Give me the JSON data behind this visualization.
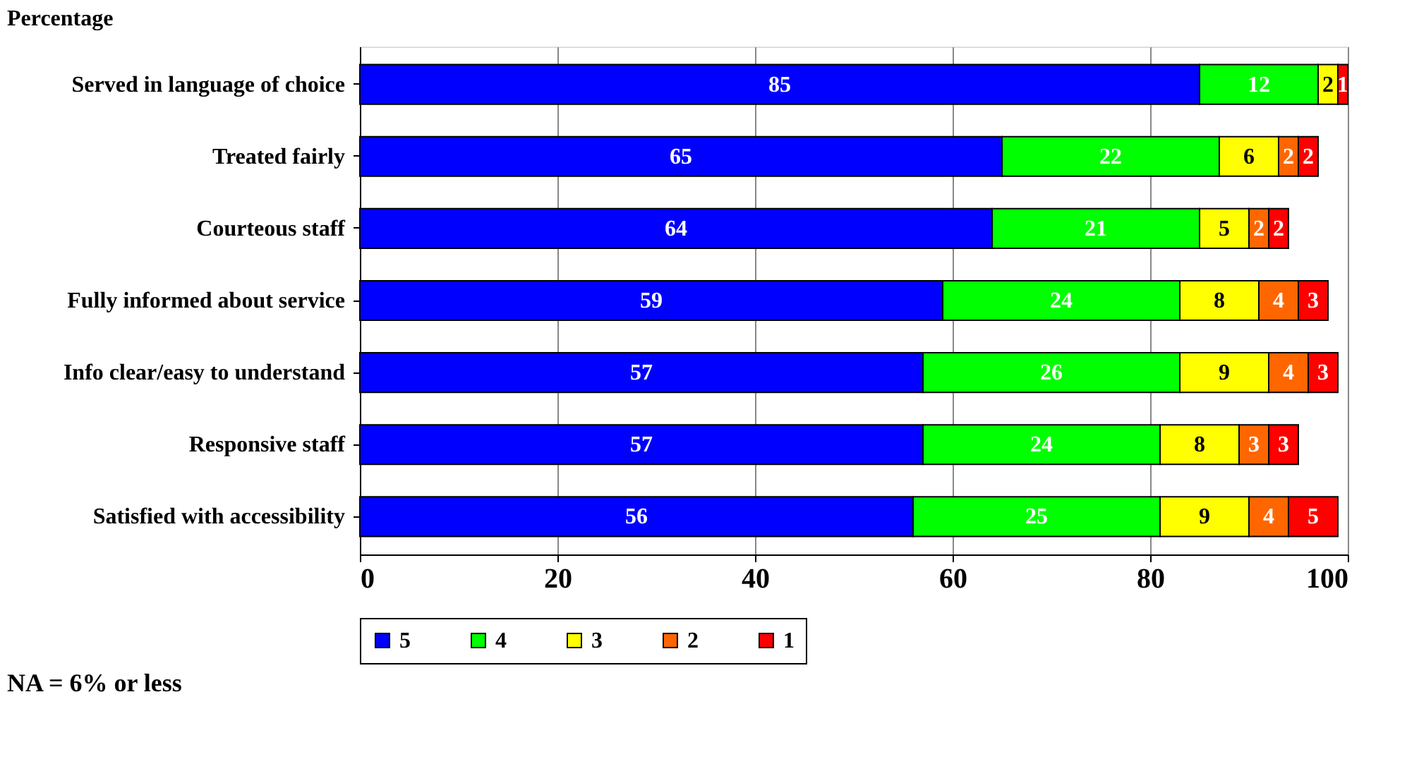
{
  "chart_data": {
    "type": "bar",
    "orientation": "horizontal",
    "stacked": true,
    "title": "Percentage",
    "categories": [
      "Served in language of choice",
      "Treated fairly",
      "Courteous staff",
      "Fully informed about service",
      "Info clear/easy to understand",
      "Responsive staff",
      "Satisfied with accessibility"
    ],
    "series": [
      {
        "name": "5",
        "color": "#0000ff",
        "values": [
          85,
          65,
          64,
          59,
          57,
          57,
          56
        ]
      },
      {
        "name": "4",
        "color": "#00ff00",
        "values": [
          12,
          22,
          21,
          24,
          26,
          24,
          25
        ]
      },
      {
        "name": "3",
        "color": "#ffff00",
        "values": [
          2,
          6,
          5,
          8,
          9,
          8,
          9
        ]
      },
      {
        "name": "2",
        "color": "#ff6600",
        "values": [
          null,
          2,
          2,
          4,
          4,
          3,
          4
        ]
      },
      {
        "name": "1",
        "color": "#ff0000",
        "values": [
          1,
          2,
          2,
          3,
          3,
          3,
          5
        ]
      }
    ],
    "xlim": [
      0,
      100
    ],
    "xticks": [
      0,
      20,
      40,
      60,
      80,
      100
    ],
    "grid": "x",
    "legend": "bottom",
    "data_labels": true,
    "annotations": [
      "NA = 6% or less"
    ]
  }
}
